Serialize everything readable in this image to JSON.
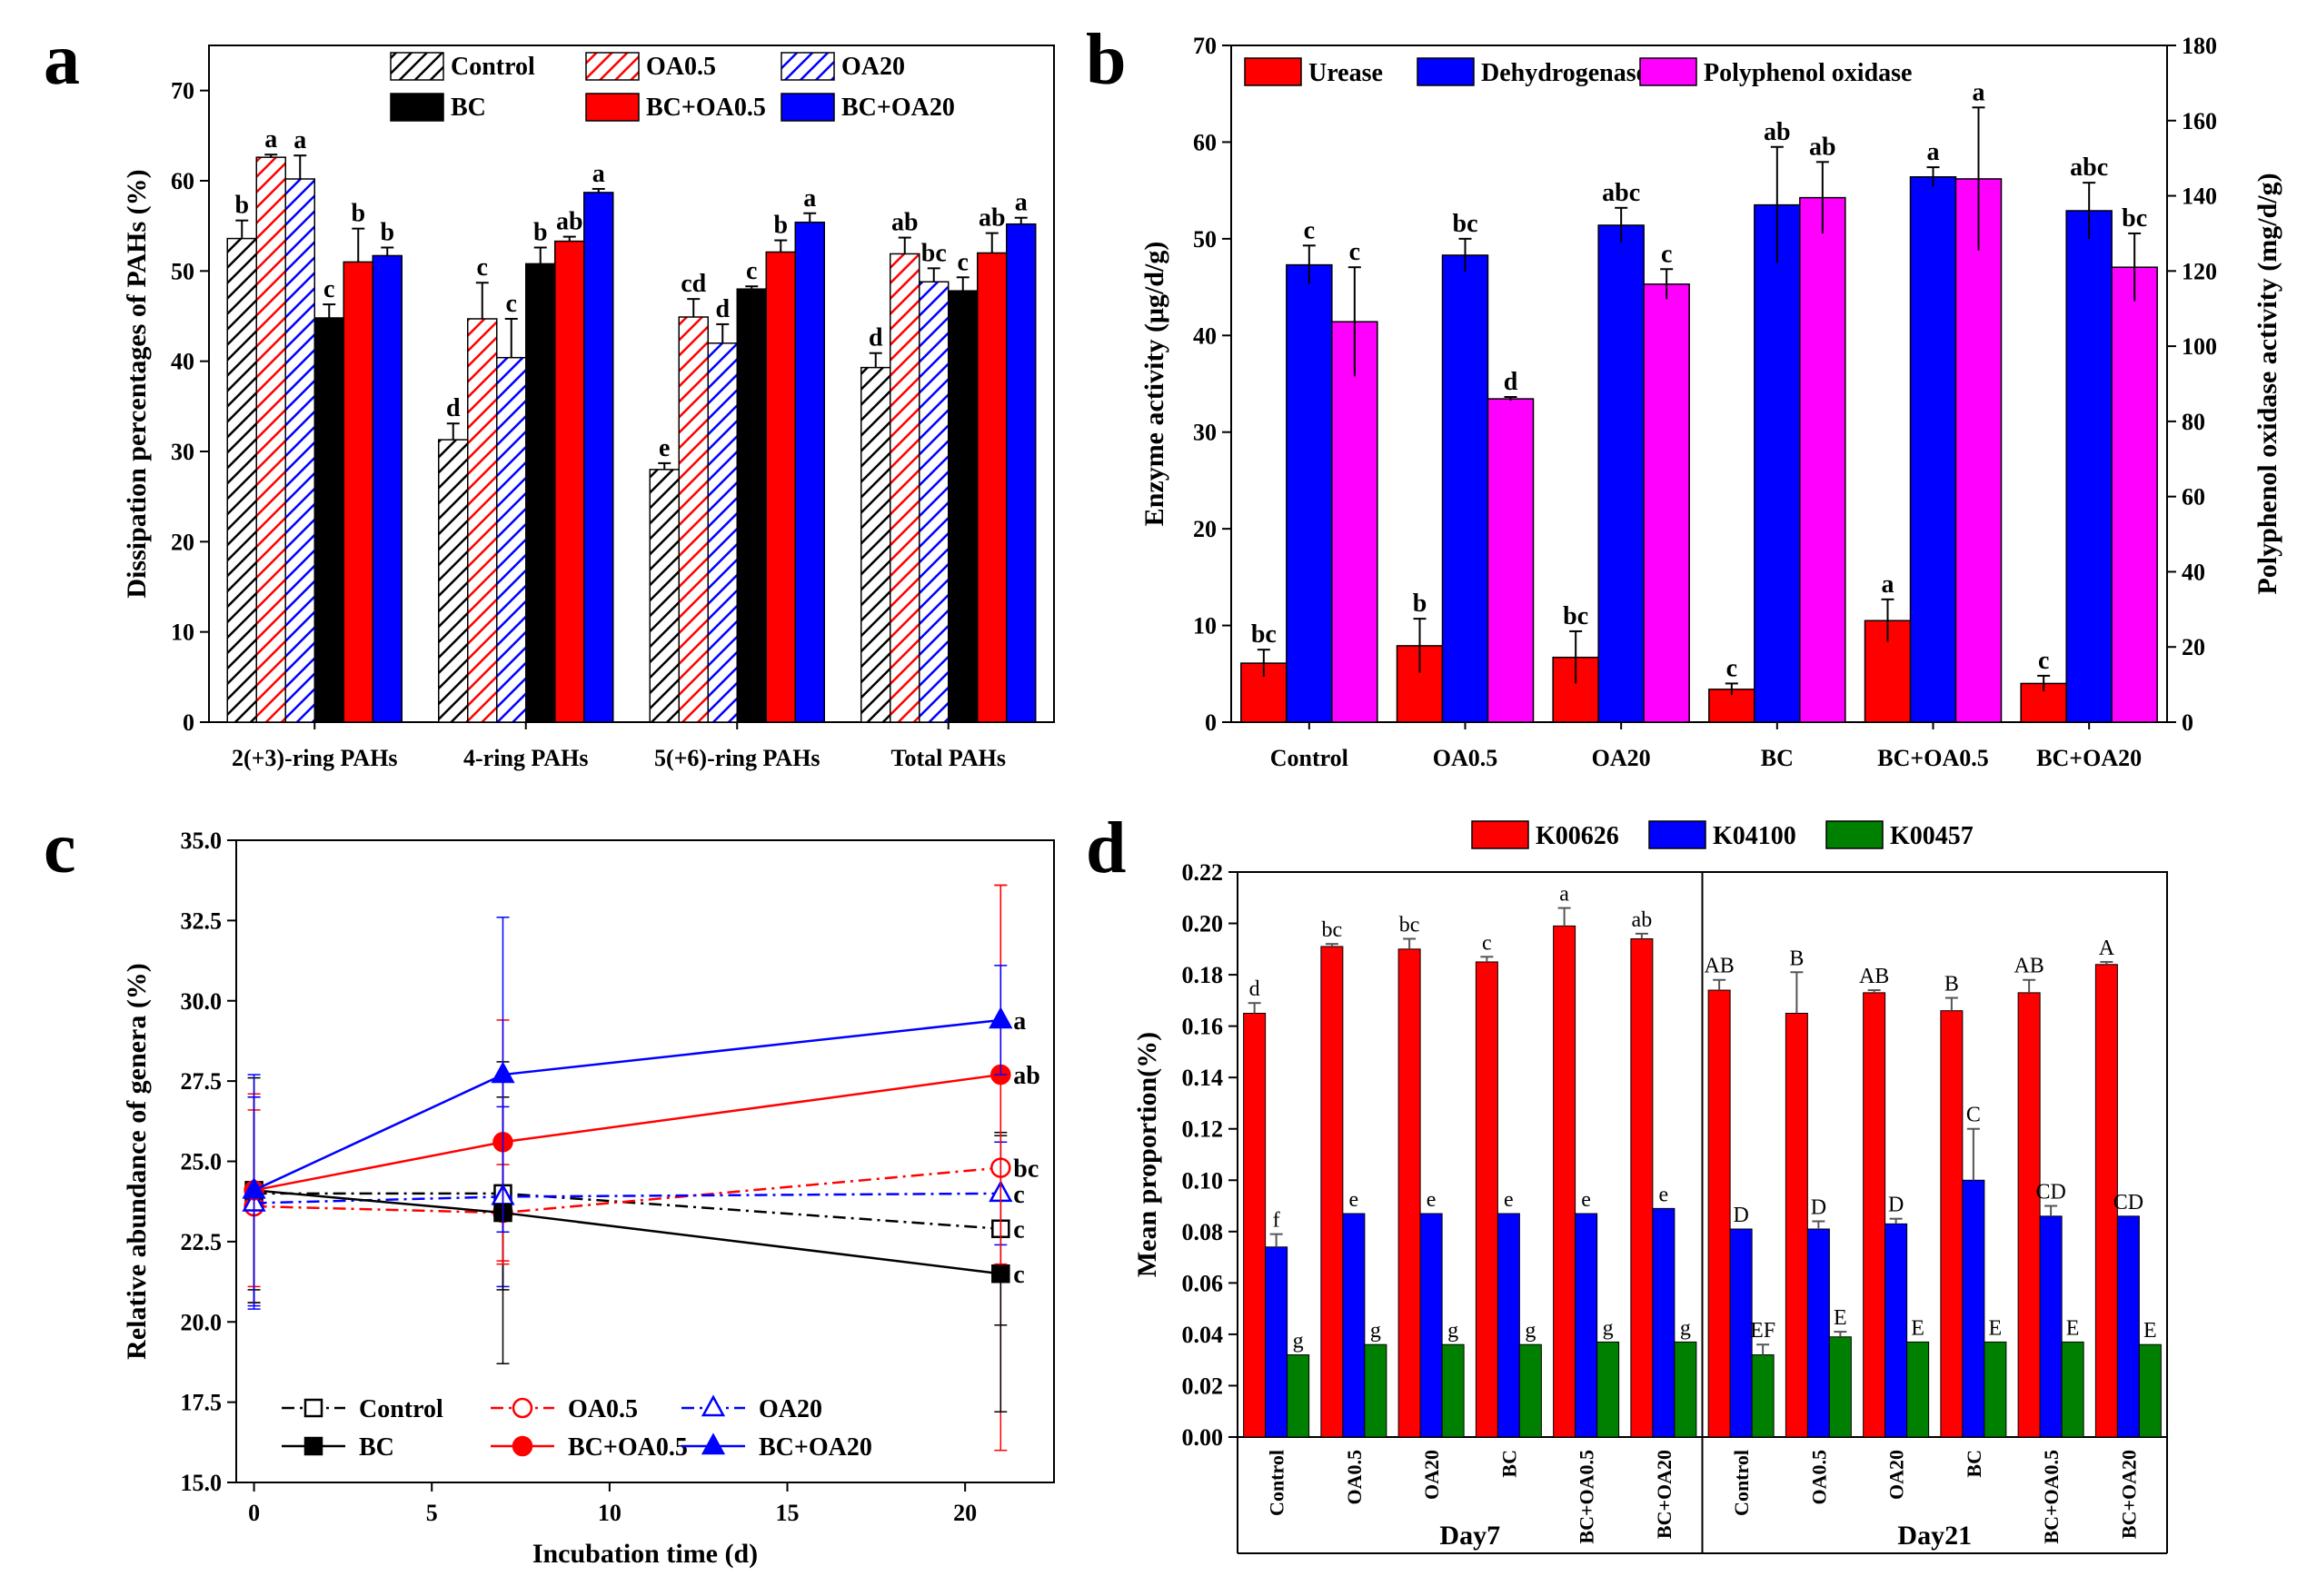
{
  "colors": {
    "black": "#000000",
    "red": "#ff0000",
    "blue": "#0000ff",
    "magenta": "#ff00ff",
    "green": "#008000",
    "gray": "#7f7f7f"
  },
  "chart_data": [
    {
      "panel": "a",
      "type": "bar",
      "ylabel": "Dissipation percentages of PAHs (%)",
      "ylim": [
        0,
        75
      ],
      "yticks": [
        0,
        10,
        20,
        30,
        40,
        50,
        60,
        70
      ],
      "categories": [
        "2(+3)-ring PAHs",
        "4-ring PAHs",
        "5(+6)-ring PAHs",
        "Total PAHs"
      ],
      "legend_position": "top-right",
      "series": [
        {
          "name": "Control",
          "color": "#000000",
          "pattern": "hatch",
          "values": [
            53.6,
            31.3,
            28.0,
            39.3
          ],
          "errors": [
            2.0,
            1.8,
            0.7,
            1.6
          ],
          "labels": [
            "b",
            "d",
            "e",
            "d"
          ]
        },
        {
          "name": "OA0.5",
          "color": "#ff0000",
          "pattern": "hatch",
          "values": [
            62.6,
            44.7,
            44.9,
            51.9
          ],
          "errors": [
            0.3,
            4.0,
            2.0,
            1.8
          ],
          "labels": [
            "a",
            "c",
            "cd",
            "ab"
          ]
        },
        {
          "name": "OA20",
          "color": "#0000ff",
          "pattern": "hatch",
          "values": [
            60.2,
            40.4,
            42.0,
            48.8
          ],
          "errors": [
            2.6,
            4.3,
            2.1,
            1.5
          ],
          "labels": [
            "a",
            "c",
            "d",
            "bc"
          ]
        },
        {
          "name": "BC",
          "color": "#000000",
          "pattern": "solid",
          "values": [
            44.8,
            50.8,
            48.0,
            47.8
          ],
          "errors": [
            1.5,
            1.8,
            0.3,
            1.5
          ],
          "labels": [
            "c",
            "b",
            "c",
            "c"
          ]
        },
        {
          "name": "BC+OA0.5",
          "color": "#ff0000",
          "pattern": "solid",
          "values": [
            51.0,
            53.3,
            52.1,
            52.0
          ],
          "errors": [
            3.7,
            0.5,
            1.3,
            2.2
          ],
          "labels": [
            "b",
            "ab",
            "b",
            "ab"
          ]
        },
        {
          "name": "BC+OA20",
          "color": "#0000ff",
          "pattern": "solid",
          "values": [
            51.7,
            58.7,
            55.4,
            55.2
          ],
          "errors": [
            0.9,
            0.4,
            1.0,
            0.7
          ],
          "labels": [
            "b",
            "a",
            "a",
            "a"
          ]
        }
      ]
    },
    {
      "panel": "b",
      "type": "bar",
      "ylabel": "Enzyme activity (μg/d/g)",
      "y2label": "Polyphenol oxidase activity (mg/d/g)",
      "ylim": [
        0,
        70
      ],
      "yticks": [
        0,
        10,
        20,
        30,
        40,
        50,
        60,
        70
      ],
      "y2lim": [
        0,
        180
      ],
      "y2ticks": [
        0,
        20,
        40,
        60,
        80,
        100,
        120,
        140,
        160,
        180
      ],
      "categories": [
        "Control",
        "OA0.5",
        "OA20",
        "BC",
        "BC+OA0.5",
        "BC+OA20"
      ],
      "legend_position": "top",
      "series": [
        {
          "name": "Urease",
          "axis": "left",
          "color": "#ff0000",
          "values": [
            6.1,
            7.9,
            6.7,
            3.4,
            10.5,
            4.0
          ],
          "errors": [
            1.4,
            2.8,
            2.7,
            0.6,
            2.2,
            0.8
          ],
          "labels": [
            "bc",
            "b",
            "bc",
            "c",
            "a",
            "c"
          ]
        },
        {
          "name": "Dehydrogenase",
          "axis": "left",
          "color": "#0000ff",
          "values": [
            47.3,
            48.3,
            51.4,
            53.5,
            56.4,
            52.9
          ],
          "errors": [
            2.0,
            1.7,
            1.8,
            6.0,
            1.0,
            2.9
          ],
          "labels": [
            "c",
            "bc",
            "abc",
            "ab",
            "a",
            "abc"
          ]
        },
        {
          "name": "Polyphenol oxidase",
          "axis": "right",
          "color": "#ff00ff",
          "values": [
            106.5,
            86.0,
            116.5,
            139.5,
            144.5,
            121.0
          ],
          "errors": [
            14.5,
            0.5,
            4.0,
            9.5,
            19.0,
            9.0
          ],
          "labels": [
            "c",
            "d",
            "c",
            "ab",
            "a",
            "bc"
          ]
        }
      ]
    },
    {
      "panel": "c",
      "type": "line",
      "xlabel": "Incubation time (d)",
      "ylabel": "Relative abundance of genera (%)",
      "xlim": [
        -0.5,
        22.5
      ],
      "xticks": [
        0,
        5,
        10,
        15,
        20
      ],
      "ylim": [
        15,
        35
      ],
      "yticks": [
        "15.0",
        "17.5",
        "20.0",
        "22.5",
        "25.0",
        "27.5",
        "30.0",
        "32.5",
        "35.0"
      ],
      "x": [
        0,
        7,
        21
      ],
      "legend_position": "bottom-left",
      "series": [
        {
          "name": "Control",
          "color": "#000000",
          "dash": "dashdot",
          "marker": "square",
          "filled": false,
          "values": [
            24.0,
            24.0,
            22.9
          ],
          "errors": [
            3.0,
            3.0,
            3.0
          ],
          "end_label": "c"
        },
        {
          "name": "OA0.5",
          "color": "#ff0000",
          "dash": "dashdot",
          "marker": "circle",
          "filled": false,
          "values": [
            23.6,
            23.4,
            24.8
          ],
          "errors": [
            3.0,
            1.5,
            8.8
          ],
          "end_label": "bc"
        },
        {
          "name": "OA20",
          "color": "#0000ff",
          "dash": "dashdot",
          "marker": "triangle",
          "filled": false,
          "values": [
            23.7,
            23.9,
            24.0
          ],
          "errors": [
            3.3,
            2.8,
            1.6
          ],
          "end_label": "c"
        },
        {
          "name": "BC",
          "color": "#000000",
          "dash": "solid",
          "marker": "square",
          "filled": true,
          "values": [
            24.1,
            23.4,
            21.5
          ],
          "errors": [
            3.5,
            4.7,
            4.3
          ],
          "end_label": "c"
        },
        {
          "name": "BC+OA0.5",
          "color": "#ff0000",
          "dash": "solid",
          "marker": "circle",
          "filled": true,
          "values": [
            24.1,
            25.6,
            27.7
          ],
          "errors": [
            3.0,
            3.8,
            5.9
          ],
          "end_label": "ab"
        },
        {
          "name": "BC+OA20",
          "color": "#0000ff",
          "dash": "solid",
          "marker": "triangle",
          "filled": true,
          "values": [
            24.1,
            27.7,
            29.4
          ],
          "errors": [
            3.6,
            4.9,
            1.7
          ],
          "end_label": "a"
        }
      ]
    },
    {
      "panel": "d",
      "type": "bar",
      "ylabel": "Mean proportion(%)",
      "ylim": [
        0,
        0.22
      ],
      "yticks": [
        "0.00",
        "0.02",
        "0.04",
        "0.06",
        "0.08",
        "0.10",
        "0.12",
        "0.14",
        "0.16",
        "0.18",
        "0.20",
        "0.22"
      ],
      "categories": [
        "Control",
        "OA0.5",
        "OA20",
        "BC",
        "BC+OA0.5",
        "BC+OA20",
        "Control",
        "OA0.5",
        "OA20",
        "BC",
        "BC+OA0.5",
        "BC+OA20"
      ],
      "groups": [
        "Day7",
        "Day21"
      ],
      "legend_position": "top",
      "series": [
        {
          "name": "K00626",
          "color": "#ff0000",
          "values": [
            0.165,
            0.191,
            0.19,
            0.185,
            0.199,
            0.194,
            0.174,
            0.165,
            0.173,
            0.166,
            0.173,
            0.184
          ],
          "errors": [
            0.004,
            0.001,
            0.004,
            0.002,
            0.007,
            0.002,
            0.004,
            0.016,
            0.001,
            0.005,
            0.005,
            0.001
          ],
          "labels": [
            "d",
            "bc",
            "bc",
            "c",
            "a",
            "ab",
            "AB",
            "B",
            "AB",
            "B",
            "AB",
            "A"
          ]
        },
        {
          "name": "K04100",
          "color": "#0000ff",
          "values": [
            0.074,
            0.087,
            0.087,
            0.087,
            0.087,
            0.089,
            0.081,
            0.081,
            0.083,
            0.1,
            0.086,
            0.086
          ],
          "errors": [
            0.005,
            0.0,
            0.0,
            0.0,
            0.0,
            0.0,
            0.0,
            0.003,
            0.002,
            0.02,
            0.004,
            0.0
          ],
          "labels": [
            "f",
            "e",
            "e",
            "e",
            "e",
            "e",
            "D",
            "D",
            "D",
            "C",
            "CD",
            "CD"
          ]
        },
        {
          "name": "K00457",
          "color": "#008000",
          "values": [
            0.032,
            0.036,
            0.036,
            0.036,
            0.037,
            0.037,
            0.032,
            0.039,
            0.037,
            0.037,
            0.037,
            0.036
          ],
          "errors": [
            0.0,
            0.0,
            0.0,
            0.0,
            0.0,
            0.0,
            0.004,
            0.002,
            0.0,
            0.0,
            0.0,
            0.0
          ],
          "labels": [
            "g",
            "g",
            "g",
            "g",
            "g",
            "g",
            "EF",
            "E",
            "E",
            "E",
            "E",
            "E"
          ]
        }
      ]
    }
  ]
}
